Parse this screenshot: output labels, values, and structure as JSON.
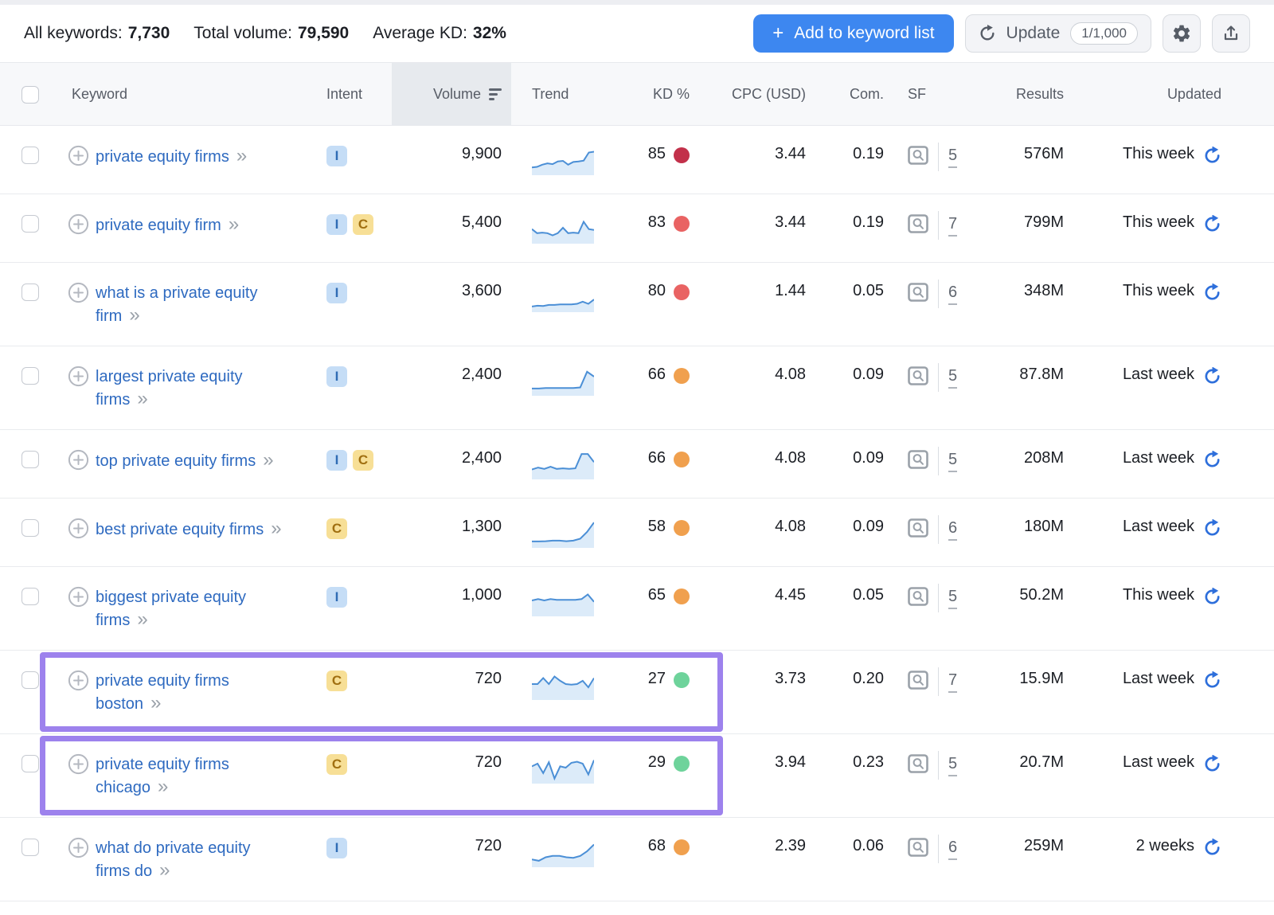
{
  "topbar": {
    "all_keywords_label": "All keywords:",
    "all_keywords_value": "7,730",
    "total_volume_label": "Total volume:",
    "total_volume_value": "79,590",
    "average_kd_label": "Average KD:",
    "average_kd_value": "32%",
    "add_button_plus": "+",
    "add_button_label": "Add to keyword list",
    "update_button_label": "Update",
    "update_count": "1/1,000"
  },
  "table": {
    "headers": {
      "keyword": "Keyword",
      "intent": "Intent",
      "volume": "Volume",
      "trend": "Trend",
      "kd": "KD %",
      "cpc": "CPC (USD)",
      "com": "Com.",
      "sf": "SF",
      "results": "Results",
      "updated": "Updated"
    },
    "rows": [
      {
        "keyword": "private equity firms",
        "intents": [
          "I"
        ],
        "volume": "9,900",
        "trend": [
          0.2,
          0.22,
          0.3,
          0.35,
          0.32,
          0.42,
          0.44,
          0.3,
          0.4,
          0.42,
          0.45,
          0.75,
          0.78
        ],
        "kd": "85",
        "kd_level": "very_hard",
        "cpc": "3.44",
        "com": "0.19",
        "sf": "5",
        "results": "576M",
        "updated": "This week",
        "highlighted": false
      },
      {
        "keyword": "private equity firm",
        "intents": [
          "I",
          "C"
        ],
        "volume": "5,400",
        "trend": [
          0.45,
          0.3,
          0.32,
          0.3,
          0.22,
          0.3,
          0.5,
          0.3,
          0.32,
          0.3,
          0.72,
          0.45,
          0.42
        ],
        "kd": "83",
        "kd_level": "hard",
        "cpc": "3.44",
        "com": "0.19",
        "sf": "7",
        "results": "799M",
        "updated": "This week",
        "highlighted": false
      },
      {
        "keyword": "what is a private equity firm",
        "intents": [
          "I"
        ],
        "volume": "3,600",
        "trend": [
          0.12,
          0.15,
          0.14,
          0.18,
          0.18,
          0.2,
          0.2,
          0.2,
          0.22,
          0.3,
          0.22,
          0.38
        ],
        "kd": "80",
        "kd_level": "hard",
        "cpc": "1.44",
        "com": "0.05",
        "sf": "6",
        "results": "348M",
        "updated": "This week",
        "highlighted": false
      },
      {
        "keyword": "largest private equity firms",
        "intents": [
          "I"
        ],
        "volume": "2,400",
        "trend": [
          0.18,
          0.18,
          0.2,
          0.2,
          0.2,
          0.2,
          0.2,
          0.22,
          0.8,
          0.62
        ],
        "kd": "66",
        "kd_level": "difficult",
        "cpc": "4.08",
        "com": "0.09",
        "sf": "5",
        "results": "87.8M",
        "updated": "Last week",
        "highlighted": false
      },
      {
        "keyword": "top private equity firms",
        "intents": [
          "I",
          "C"
        ],
        "volume": "2,400",
        "trend": [
          0.28,
          0.35,
          0.3,
          0.38,
          0.3,
          0.32,
          0.3,
          0.32,
          0.85,
          0.85,
          0.55
        ],
        "kd": "66",
        "kd_level": "difficult",
        "cpc": "4.08",
        "com": "0.09",
        "sf": "5",
        "results": "208M",
        "updated": "Last week",
        "highlighted": false
      },
      {
        "keyword": "best private equity firms",
        "intents": [
          "C"
        ],
        "volume": "1,300",
        "trend": [
          0.15,
          0.15,
          0.16,
          0.18,
          0.18,
          0.16,
          0.18,
          0.25,
          0.5,
          0.85
        ],
        "kd": "58",
        "kd_level": "difficult",
        "cpc": "4.08",
        "com": "0.09",
        "sf": "6",
        "results": "180M",
        "updated": "Last week",
        "highlighted": false
      },
      {
        "keyword": "biggest private equity firms",
        "intents": [
          "I"
        ],
        "volume": "1,000",
        "trend": [
          0.5,
          0.55,
          0.5,
          0.55,
          0.52,
          0.52,
          0.52,
          0.52,
          0.55,
          0.72,
          0.45
        ],
        "kd": "65",
        "kd_level": "difficult",
        "cpc": "4.45",
        "com": "0.05",
        "sf": "5",
        "results": "50.2M",
        "updated": "This week",
        "highlighted": false
      },
      {
        "keyword": "private equity firms boston",
        "intents": [
          "C"
        ],
        "volume": "720",
        "trend": [
          0.5,
          0.5,
          0.72,
          0.5,
          0.78,
          0.62,
          0.5,
          0.48,
          0.5,
          0.62,
          0.38,
          0.72
        ],
        "kd": "27",
        "kd_level": "easy",
        "cpc": "3.73",
        "com": "0.20",
        "sf": "7",
        "results": "15.9M",
        "updated": "Last week",
        "highlighted": true
      },
      {
        "keyword": "private equity firms chicago",
        "intents": [
          "C"
        ],
        "volume": "720",
        "trend": [
          0.55,
          0.65,
          0.3,
          0.7,
          0.1,
          0.55,
          0.5,
          0.68,
          0.72,
          0.65,
          0.25,
          0.78
        ],
        "kd": "29",
        "kd_level": "easy",
        "cpc": "3.94",
        "com": "0.23",
        "sf": "5",
        "results": "20.7M",
        "updated": "Last week",
        "highlighted": true
      },
      {
        "keyword": "what do private equity firms do",
        "intents": [
          "I"
        ],
        "volume": "720",
        "trend": [
          0.2,
          0.15,
          0.28,
          0.33,
          0.33,
          0.28,
          0.26,
          0.33,
          0.5,
          0.75
        ],
        "kd": "68",
        "kd_level": "difficult",
        "cpc": "2.39",
        "com": "0.06",
        "sf": "6",
        "results": "259M",
        "updated": "2 weeks",
        "highlighted": false
      }
    ]
  },
  "colors": {
    "accent_blue": "#3d87f0",
    "link_blue": "#2e6ac0",
    "highlight_purple": "#9d82ed",
    "spark_line": "#4b8fd6",
    "spark_fill": "#dcebf9",
    "refresh_blue": "#2e6fdb",
    "kd": {
      "very_hard": "#c2304a",
      "hard": "#e96363",
      "difficult": "#f0a04e",
      "easy": "#6ed39b"
    },
    "intent": {
      "I": {
        "bg": "#c5ddf6",
        "fg": "#2f6cb4"
      },
      "C": {
        "bg": "#f7df96",
        "fg": "#a06f10"
      }
    }
  }
}
